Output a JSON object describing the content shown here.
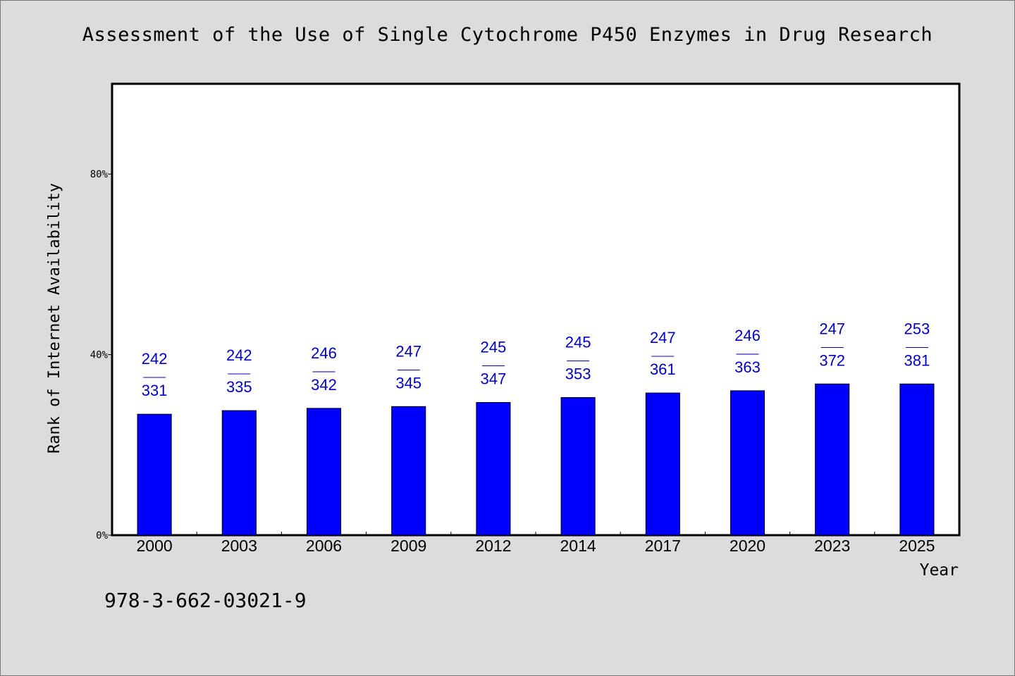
{
  "chart_data": {
    "type": "bar",
    "title": "Assessment of the Use of Single Cytochrome P450 Enzymes in Drug Research",
    "xlabel": "Year",
    "ylabel": "Rank of Internet Availability",
    "ylim": [
      0,
      100
    ],
    "yticks": [
      {
        "value": 0,
        "label": "0%"
      },
      {
        "value": 40,
        "label": "40%"
      },
      {
        "value": 80,
        "label": "80%"
      }
    ],
    "categories": [
      "2000",
      "2003",
      "2006",
      "2009",
      "2012",
      "2014",
      "2017",
      "2020",
      "2023",
      "2025"
    ],
    "values": [
      26.8,
      27.6,
      28.1,
      28.5,
      29.4,
      30.5,
      31.5,
      32.0,
      33.5,
      33.5
    ],
    "data_labels": [
      {
        "top": "242",
        "sep": "——",
        "bottom": "331"
      },
      {
        "top": "242",
        "sep": "——",
        "bottom": "335"
      },
      {
        "top": "246",
        "sep": "——",
        "bottom": "342"
      },
      {
        "top": "247",
        "sep": "——",
        "bottom": "345"
      },
      {
        "top": "245",
        "sep": "——",
        "bottom": "347"
      },
      {
        "top": "245",
        "sep": "——",
        "bottom": "353"
      },
      {
        "top": "247",
        "sep": "——",
        "bottom": "361"
      },
      {
        "top": "246",
        "sep": "——",
        "bottom": "363"
      },
      {
        "top": "247",
        "sep": "——",
        "bottom": "372"
      },
      {
        "top": "253",
        "sep": "——",
        "bottom": "381"
      }
    ],
    "grid": false,
    "bar_color": "#0000ff",
    "label_color": "#0000cc"
  },
  "footnote": "978-3-662-03021-9"
}
